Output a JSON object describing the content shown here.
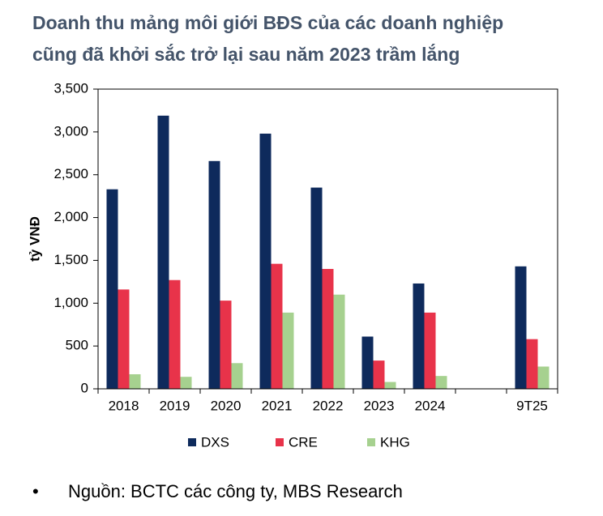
{
  "chart_data": {
    "type": "bar",
    "title": [
      "Doanh thu mảng môi giới BĐS của các doanh nghiệp",
      "cũng đã khởi sắc trở lại sau năm 2023 trầm lắng"
    ],
    "ylabel": "tỷ VNĐ",
    "categories": [
      "2018",
      "2019",
      "2020",
      "2021",
      "2022",
      "2023",
      "2024",
      null,
      "9T25"
    ],
    "series": [
      {
        "name": "DXS",
        "color": "#0e2a5c",
        "values": [
          2330,
          3190,
          2660,
          2980,
          2350,
          610,
          1230,
          null,
          1430
        ]
      },
      {
        "name": "CRE",
        "color": "#e8334a",
        "values": [
          1160,
          1270,
          1030,
          1460,
          1400,
          330,
          890,
          null,
          580
        ]
      },
      {
        "name": "KHG",
        "color": "#a6d18f",
        "values": [
          170,
          140,
          300,
          890,
          1100,
          80,
          150,
          null,
          260
        ]
      }
    ],
    "ylim": [
      0,
      3500
    ],
    "yticks": [
      0,
      500,
      {
        "value": 1000,
        "label": "1,000"
      },
      {
        "value": 1500,
        "label": "1,500"
      },
      {
        "value": 2000,
        "label": "2,000"
      },
      {
        "value": 2500,
        "label": "2,500"
      },
      {
        "value": 3000,
        "label": "3,000"
      },
      {
        "value": 3500,
        "label": "3,500"
      }
    ],
    "grid": false,
    "legend": "bottom",
    "footnote": "Nguồn: BCTC các công ty, MBS Research"
  }
}
